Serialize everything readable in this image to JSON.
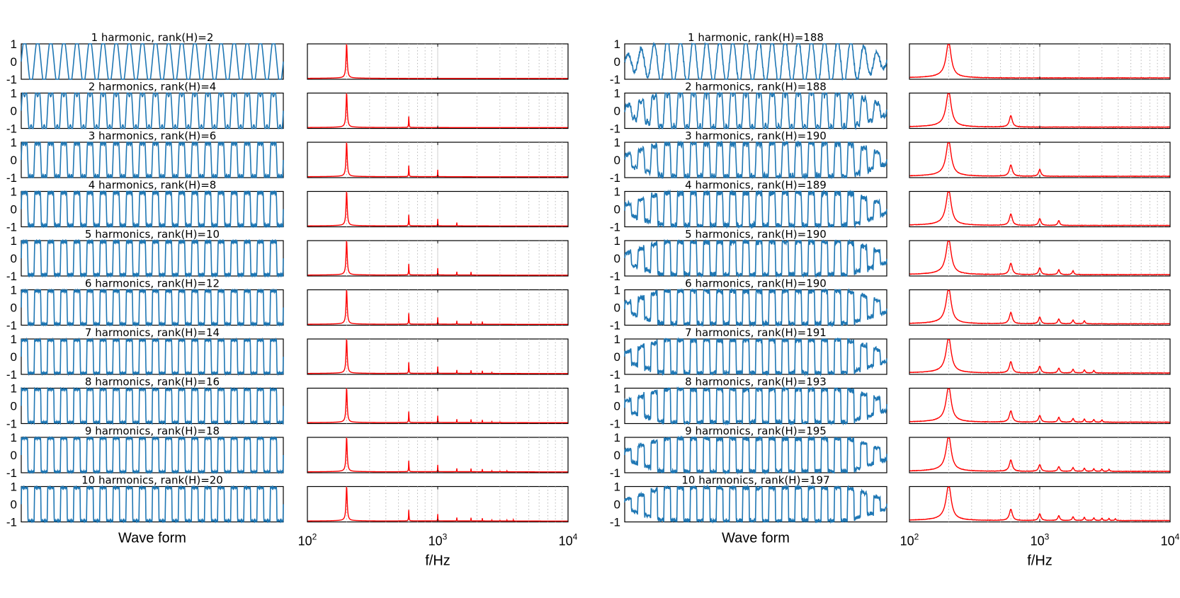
{
  "chart_data": [
    {
      "type": "line",
      "group": "left",
      "fundamental_hz": 200,
      "harmonic_series": "odd",
      "waveform": {
        "xlabel": "Wave form",
        "ylim": [
          -1,
          1
        ],
        "yticks": [
          "1",
          "0",
          "-1"
        ],
        "envelope": "none",
        "noise": false,
        "color": "#1f77b4"
      },
      "spectrum": {
        "xlabel": "f/Hz",
        "xscale": "log",
        "xlim": [
          100,
          10000
        ],
        "xticks": [
          {
            "base": "10",
            "exp": "2"
          },
          {
            "base": "10",
            "exp": "3"
          },
          {
            "base": "10",
            "exp": "4"
          }
        ],
        "peak_width": "narrow",
        "grid": "vertical dotted",
        "color": "#ff0000"
      },
      "panels": [
        {
          "title": "1 harmonic, rank(H)=2",
          "harmonics": 1,
          "rank": 2
        },
        {
          "title": "2 harmonics, rank(H)=4",
          "harmonics": 2,
          "rank": 4
        },
        {
          "title": "3 harmonics, rank(H)=6",
          "harmonics": 3,
          "rank": 6
        },
        {
          "title": "4 harmonics, rank(H)=8",
          "harmonics": 4,
          "rank": 8
        },
        {
          "title": "5 harmonics, rank(H)=10",
          "harmonics": 5,
          "rank": 10
        },
        {
          "title": "6 harmonics, rank(H)=12",
          "harmonics": 6,
          "rank": 12
        },
        {
          "title": "7 harmonics, rank(H)=14",
          "harmonics": 7,
          "rank": 14
        },
        {
          "title": "8 harmonics, rank(H)=16",
          "harmonics": 8,
          "rank": 16
        },
        {
          "title": "9 harmonics, rank(H)=18",
          "harmonics": 9,
          "rank": 18
        },
        {
          "title": "10 harmonics, rank(H)=20",
          "harmonics": 10,
          "rank": 20
        }
      ]
    },
    {
      "type": "line",
      "group": "right",
      "fundamental_hz": 200,
      "harmonic_series": "odd",
      "waveform": {
        "xlabel": "Wave form",
        "ylim": [
          -1,
          1
        ],
        "yticks": [
          "1",
          "0",
          "-1"
        ],
        "envelope": "tapered",
        "noise": true,
        "color": "#1f77b4"
      },
      "spectrum": {
        "xlabel": "f/Hz",
        "xscale": "log",
        "xlim": [
          100,
          10000
        ],
        "xticks": [
          {
            "base": "10",
            "exp": "2"
          },
          {
            "base": "10",
            "exp": "3"
          },
          {
            "base": "10",
            "exp": "4"
          }
        ],
        "peak_width": "broad",
        "grid": "vertical dotted",
        "color": "#ff0000"
      },
      "panels": [
        {
          "title": "1 harmonic, rank(H)=188",
          "harmonics": 1,
          "rank": 188
        },
        {
          "title": "2 harmonics, rank(H)=188",
          "harmonics": 2,
          "rank": 188
        },
        {
          "title": "3 harmonics, rank(H)=190",
          "harmonics": 3,
          "rank": 190
        },
        {
          "title": "4 harmonics, rank(H)=189",
          "harmonics": 4,
          "rank": 189
        },
        {
          "title": "5 harmonics, rank(H)=190",
          "harmonics": 5,
          "rank": 190
        },
        {
          "title": "6 harmonics, rank(H)=190",
          "harmonics": 6,
          "rank": 190
        },
        {
          "title": "7 harmonics, rank(H)=191",
          "harmonics": 7,
          "rank": 191
        },
        {
          "title": "8 harmonics, rank(H)=193",
          "harmonics": 8,
          "rank": 193
        },
        {
          "title": "9 harmonics, rank(H)=195",
          "harmonics": 9,
          "rank": 195
        },
        {
          "title": "10 harmonics, rank(H)=197",
          "harmonics": 10,
          "rank": 197
        }
      ]
    }
  ]
}
